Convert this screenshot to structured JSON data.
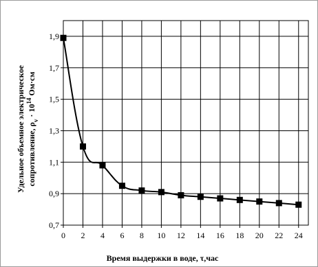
{
  "chart_data": {
    "type": "line",
    "title": "",
    "xlabel": "Время выдержки в воде, τ,час",
    "ylabel_line1": "Удельное объемное электрическое",
    "ylabel_line2_prefix": "сопротивление, ρ",
    "ylabel_line2_sub": "v",
    "ylabel_line2_mid": " · 10",
    "ylabel_line2_sup": "14",
    "ylabel_line2_suffix": " Ом·см",
    "x": [
      0,
      2,
      4,
      6,
      8,
      10,
      12,
      14,
      16,
      18,
      20,
      22,
      24
    ],
    "y": [
      1.89,
      1.2,
      1.08,
      0.95,
      0.92,
      0.91,
      0.89,
      0.88,
      0.87,
      0.86,
      0.85,
      0.84,
      0.83
    ],
    "xlim": [
      0,
      25
    ],
    "ylim": [
      0.7,
      2.0
    ],
    "xticks": [
      0,
      2,
      4,
      6,
      8,
      10,
      12,
      14,
      16,
      18,
      20,
      22,
      24
    ],
    "xtick_labels": [
      "0",
      "2",
      "4",
      "6",
      "8",
      "10",
      "12",
      "14",
      "16",
      "18",
      "20",
      "22",
      "24"
    ],
    "yticks": [
      0.7,
      0.9,
      1.1,
      1.3,
      1.5,
      1.7,
      1.9
    ],
    "ytick_labels": [
      "0,7",
      "0,9",
      "1,1",
      "1,3",
      "1,5",
      "1,7",
      "1,9"
    ],
    "grid": true,
    "marker": "square",
    "line_color": "#000000"
  }
}
